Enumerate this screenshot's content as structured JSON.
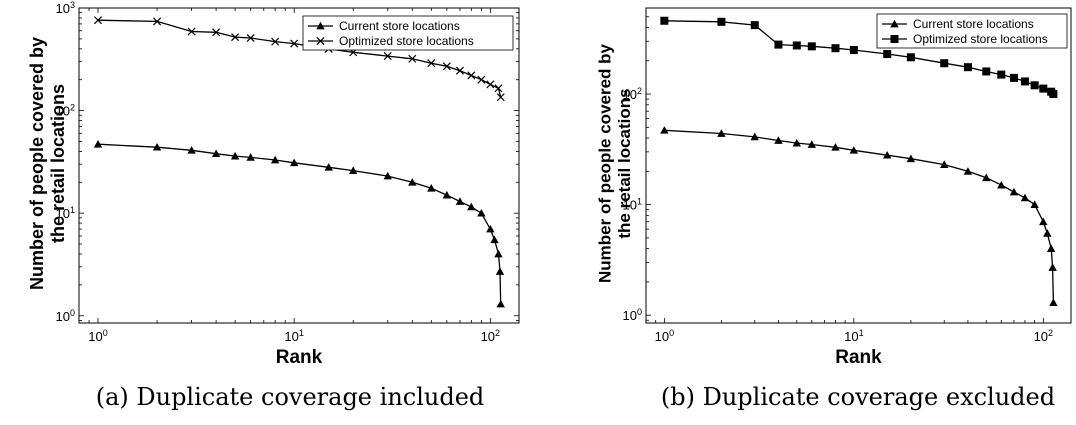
{
  "chart_data": [
    {
      "type": "line",
      "caption": "(a) Duplicate coverage included",
      "xlabel": "Rank",
      "ylabel": "Number of people covered by the retail locations",
      "xscale": "log",
      "yscale": "log",
      "xlim": [
        0.8,
        140
      ],
      "ylim": [
        0.85,
        1000
      ],
      "x_ticks": [
        {
          "base": "10",
          "exp": "0"
        },
        {
          "base": "10",
          "exp": "1"
        },
        {
          "base": "10",
          "exp": "2"
        }
      ],
      "y_ticks": [
        {
          "base": "10",
          "exp": "0"
        },
        {
          "base": "10",
          "exp": "1"
        },
        {
          "base": "10",
          "exp": "2"
        },
        {
          "base": "10",
          "exp": "3"
        }
      ],
      "legend_position": "top-right",
      "series": [
        {
          "name": "Current store locations",
          "marker": "triangle",
          "x": [
            1,
            2,
            3,
            4,
            5,
            6,
            8,
            10,
            15,
            20,
            30,
            40,
            50,
            60,
            70,
            80,
            90,
            100,
            105,
            110,
            112,
            113
          ],
          "y": [
            47,
            44,
            41,
            38,
            36,
            35,
            33,
            31,
            28,
            26,
            23,
            20,
            17.5,
            15,
            13,
            11.5,
            10,
            7,
            5.5,
            4,
            2.7,
            1.3
          ]
        },
        {
          "name": "Optimized store locations",
          "marker": "x",
          "x": [
            1,
            2,
            3,
            4,
            5,
            6,
            8,
            10,
            15,
            20,
            30,
            40,
            50,
            60,
            70,
            80,
            90,
            100,
            110,
            113
          ],
          "y": [
            760,
            740,
            590,
            580,
            520,
            510,
            470,
            450,
            400,
            370,
            340,
            320,
            290,
            270,
            245,
            220,
            200,
            180,
            165,
            135
          ]
        }
      ]
    },
    {
      "type": "line",
      "caption": "(b) Duplicate coverage excluded",
      "xlabel": "Rank",
      "ylabel": "Number of people covered by the retail locations",
      "xscale": "log",
      "yscale": "log",
      "xlim": [
        0.8,
        140
      ],
      "ylim": [
        0.85,
        600
      ],
      "x_ticks": [
        {
          "base": "10",
          "exp": "0"
        },
        {
          "base": "10",
          "exp": "1"
        },
        {
          "base": "10",
          "exp": "2"
        }
      ],
      "y_ticks": [
        {
          "base": "10",
          "exp": "0"
        },
        {
          "base": "10",
          "exp": "1"
        },
        {
          "base": "10",
          "exp": "2"
        }
      ],
      "legend_position": "top-right",
      "series": [
        {
          "name": "Current store locations",
          "marker": "triangle",
          "x": [
            1,
            2,
            3,
            4,
            5,
            6,
            8,
            10,
            15,
            20,
            30,
            40,
            50,
            60,
            70,
            80,
            90,
            100,
            105,
            110,
            112,
            113
          ],
          "y": [
            47,
            44,
            41,
            38,
            36,
            35,
            33,
            31,
            28,
            26,
            23,
            20,
            17.5,
            15,
            13,
            11.5,
            10,
            7,
            5.5,
            4,
            2.7,
            1.3
          ]
        },
        {
          "name": "Optimized store locations",
          "marker": "square",
          "x": [
            1,
            2,
            3,
            4,
            5,
            6,
            8,
            10,
            15,
            20,
            30,
            40,
            50,
            60,
            70,
            80,
            90,
            100,
            110,
            113
          ],
          "y": [
            460,
            450,
            420,
            280,
            275,
            270,
            260,
            250,
            230,
            215,
            190,
            175,
            160,
            150,
            140,
            130,
            120,
            112,
            105,
            100
          ]
        }
      ]
    }
  ]
}
